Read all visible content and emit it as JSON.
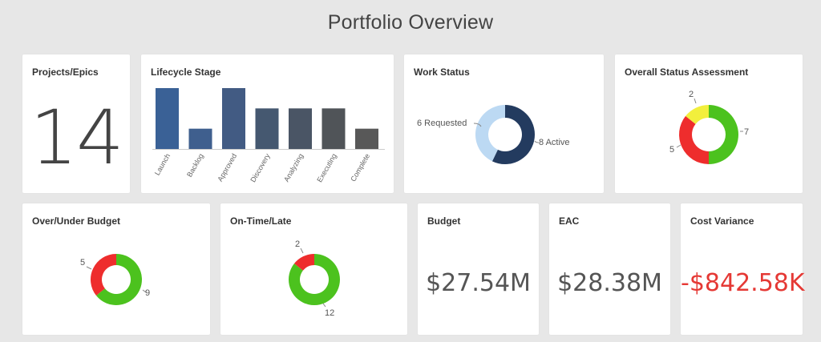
{
  "page": {
    "title": "Portfolio Overview"
  },
  "colors": {
    "green": "#4cc21e",
    "red": "#ee2d2d",
    "yellow": "#f2ef3c",
    "navy": "#233b5f",
    "light_blue": "#bcd9f3",
    "negative_text": "#e53935"
  },
  "projects": {
    "title": "Projects/Epics",
    "count": "14"
  },
  "lifecycle": {
    "title": "Lifecycle Stage"
  },
  "work_status": {
    "title": "Work Status",
    "labels": {
      "requested": "6 Requested",
      "active": "8 Active"
    }
  },
  "overall_status": {
    "title": "Overall Status Assessment"
  },
  "budget_status": {
    "title": "Over/Under Budget"
  },
  "schedule_status": {
    "title": "On-Time/Late"
  },
  "budget": {
    "title": "Budget",
    "value": "$27.54M"
  },
  "eac": {
    "title": "EAC",
    "value": "$28.38M"
  },
  "cost_variance": {
    "title": "Cost Variance",
    "value": "-$842.58K"
  },
  "chart_data": [
    {
      "type": "bar",
      "title": "Lifecycle Stage",
      "categories": [
        "Launch",
        "Backlog",
        "Approved",
        "Discovery",
        "Analyzing",
        "Executing",
        "Complete"
      ],
      "values": [
        3,
        1,
        3,
        2,
        2,
        2,
        1
      ],
      "colors": [
        "#3a6196",
        "#3f5f8e",
        "#425b83",
        "#455870",
        "#4a5565",
        "#505458",
        "#585858"
      ],
      "ylim": [
        0,
        3
      ]
    },
    {
      "type": "pie",
      "title": "Work Status",
      "series": [
        {
          "name": "Active",
          "value": 8,
          "color": "#233b5f"
        },
        {
          "name": "Requested",
          "value": 6,
          "color": "#bcd9f3"
        }
      ]
    },
    {
      "type": "pie",
      "title": "Overall Status Assessment",
      "series": [
        {
          "name": "Green",
          "value": 7,
          "label": "7",
          "color": "#4cc21e"
        },
        {
          "name": "Red",
          "value": 5,
          "label": "5",
          "color": "#ee2d2d"
        },
        {
          "name": "Yellow",
          "value": 2,
          "label": "2",
          "color": "#f2ef3c"
        }
      ]
    },
    {
      "type": "pie",
      "title": "Over/Under Budget",
      "series": [
        {
          "name": "Under",
          "value": 9,
          "label": "9",
          "color": "#4cc21e"
        },
        {
          "name": "Over",
          "value": 5,
          "label": "5",
          "color": "#ee2d2d"
        }
      ]
    },
    {
      "type": "pie",
      "title": "On-Time/Late",
      "series": [
        {
          "name": "On-Time",
          "value": 12,
          "label": "12",
          "color": "#4cc21e"
        },
        {
          "name": "Late",
          "value": 2,
          "label": "2",
          "color": "#ee2d2d"
        }
      ]
    }
  ]
}
